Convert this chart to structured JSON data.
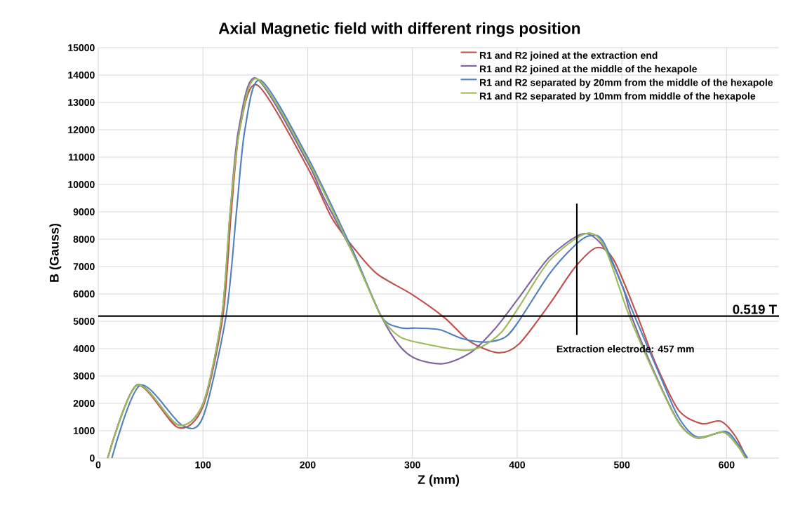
{
  "chart_data": {
    "type": "line",
    "title": "Axial Magnetic field with different rings position",
    "xlabel": "Z (mm)",
    "ylabel": "B (Gauss)",
    "xlim": [
      0,
      650
    ],
    "xticks": [
      0,
      100,
      200,
      300,
      400,
      500,
      600
    ],
    "ylim": [
      0,
      15000
    ],
    "yticks": [
      0,
      1000,
      2000,
      3000,
      4000,
      5000,
      6000,
      7000,
      8000,
      9000,
      10000,
      11000,
      12000,
      13000,
      14000,
      15000
    ],
    "grid": true,
    "legend": "top right",
    "line_style": "solid",
    "marker": "none",
    "series": [
      {
        "name": "R1 and R2 joined at the extraction end",
        "color": "#c0504d",
        "x": [
          9,
          37,
          76,
          100,
          119,
          127,
          135,
          152,
          200,
          223,
          244,
          266,
          300,
          331,
          355,
          382,
          402,
          431,
          455,
          476,
          492,
          514,
          532,
          554,
          576,
          594,
          608,
          619
        ],
        "values": [
          0,
          2650,
          1120,
          1880,
          5190,
          9000,
          12000,
          13630,
          10610,
          8780,
          7680,
          6740,
          5970,
          5120,
          4260,
          3850,
          4180,
          5630,
          6960,
          7690,
          7260,
          5280,
          3480,
          1760,
          1260,
          1350,
          820,
          0
        ]
      },
      {
        "name": "R1 and R2 joined at the middle of the hexapole",
        "color": "#8064a2",
        "x": [
          9,
          37,
          76,
          100,
          118,
          126,
          134,
          151,
          200,
          215,
          244,
          270,
          288,
          304,
          329,
          355,
          378,
          402,
          431,
          463,
          483,
          501,
          509,
          532,
          554,
          572,
          597,
          610,
          618
        ],
        "values": [
          0,
          2680,
          1215,
          1990,
          5190,
          9000,
          12000,
          13880,
          10800,
          9550,
          7420,
          5200,
          4090,
          3620,
          3450,
          3840,
          4690,
          5880,
          7350,
          8200,
          7690,
          6230,
          5200,
          3050,
          1330,
          730,
          945,
          470,
          0
        ]
      },
      {
        "name": "R1 and R2 separated by 20mm from the middle of the hexapole",
        "color": "#4f81bd",
        "x": [
          13,
          40,
          80,
          100,
          122,
          132,
          140,
          155,
          200,
          244,
          270,
          288,
          304,
          326,
          349,
          371,
          389,
          402,
          431,
          455,
          469,
          483,
          512,
          536,
          554,
          572,
          599,
          611,
          620
        ],
        "values": [
          0,
          2660,
          1200,
          1500,
          5190,
          9000,
          12000,
          13810,
          10990,
          7500,
          5200,
          4770,
          4750,
          4690,
          4350,
          4240,
          4430,
          5030,
          6740,
          7770,
          8120,
          7860,
          5200,
          3050,
          1500,
          770,
          970,
          500,
          0
        ]
      },
      {
        "name": "R1 and R2 separated by 10mm from middle of the hexapole",
        "color": "#9bbb59",
        "x": [
          9,
          37,
          76,
          100,
          118,
          126,
          135,
          152,
          200,
          244,
          270,
          288,
          311,
          349,
          367,
          385,
          402,
          431,
          465,
          483,
          507,
          532,
          554,
          572,
          597,
          610,
          618
        ],
        "values": [
          0,
          2660,
          1215,
          1974,
          5190,
          9000,
          12000,
          13860,
          10900,
          7400,
          5200,
          4430,
          4180,
          3940,
          4090,
          4600,
          5540,
          7220,
          8200,
          7750,
          5200,
          3000,
          1300,
          740,
          950,
          470,
          0
        ]
      }
    ],
    "ref_lines": [
      {
        "axis": "y",
        "value": 5190,
        "label": "0.519 T",
        "color": "#000000"
      },
      {
        "axis": "x",
        "value": 457,
        "label": "Extraction electrode: 457 mm",
        "color": "#000000"
      }
    ]
  }
}
